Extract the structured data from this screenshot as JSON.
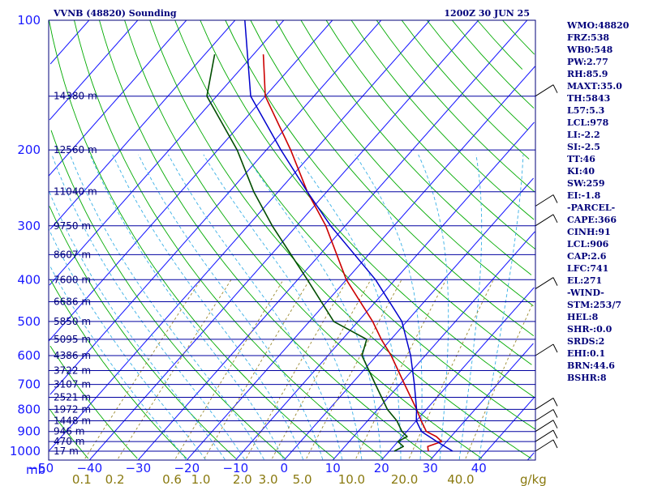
{
  "header": {
    "station": "VVNB (48820) Sounding",
    "time": "1200Z 30 JUN 25"
  },
  "indices": [
    "WMO:48820",
    "FRZ:538",
    "WB0:548",
    "PW:2.77",
    "RH:85.9",
    "MAXT:35.0",
    "TH:5843",
    "L57:5.3",
    "LCL:978",
    "LI:-2.2",
    "SI:-2.5",
    "TT:46",
    "KI:40",
    "SW:259",
    "EI:-1.8",
    "-PARCEL-",
    "CAPE:366",
    "CINH:91",
    "LCL:906",
    "CAP:2.6",
    "LFC:741",
    "EL:271",
    "-WIND-",
    "STM:253/7",
    "HEL:8",
    "SHR-:0.0",
    "SRDS:2",
    "EHI:0.1",
    "BRN:44.6",
    "BSHR:8"
  ],
  "colors": {
    "frame": "#00007a",
    "isobar": "#1a1aff",
    "isotherm": "#1a1aff",
    "dry_adiabat": "#00aa00",
    "moist_adiabat": "#3ab0e6",
    "mixing_ratio": "#9a8a30",
    "temp": "#cc0000",
    "dewpoint": "#004d00",
    "parcel": "#0000cc",
    "wind": "#000000"
  },
  "chart_data": {
    "type": "line",
    "title": "VVNB (48820) Sounding",
    "plot": "skew-T log-p",
    "x_label": "mb",
    "x_unit_label": "g/kg",
    "ylim": [
      1000,
      100
    ],
    "xlim": [
      -50,
      50
    ],
    "pressure_ticks": [
      100,
      200,
      300,
      400,
      500,
      600,
      700,
      800,
      900,
      1000
    ],
    "temperature_ticks": [
      "−50",
      "−40",
      "−30",
      "−20",
      "−10",
      "0",
      "10",
      "20",
      "30",
      "40"
    ],
    "temperature_tick_values": [
      -50,
      -40,
      -30,
      -20,
      -10,
      0,
      10,
      20,
      30,
      40
    ],
    "mixing_ratio_labels": [
      "0.1",
      "0.2",
      "0.6",
      "1.0",
      "2.0",
      "3.0",
      "5.0",
      "10.0",
      "20.0",
      "40.0"
    ],
    "mixing_ratio_values": [
      0.1,
      0.2,
      0.6,
      1.0,
      2.0,
      3.0,
      5.0,
      10.0,
      20.0,
      40.0
    ],
    "height_labels": [
      {
        "p": 150,
        "text": "14380 m"
      },
      {
        "p": 200,
        "text": "12560 m"
      },
      {
        "p": 250,
        "text": "11040 m"
      },
      {
        "p": 300,
        "text": "9750 m"
      },
      {
        "p": 350,
        "text": "8607 m"
      },
      {
        "p": 400,
        "text": "7600 m"
      },
      {
        "p": 450,
        "text": "6686 m"
      },
      {
        "p": 500,
        "text": "5850 m"
      },
      {
        "p": 550,
        "text": "5095 m"
      },
      {
        "p": 600,
        "text": "4386 m"
      },
      {
        "p": 650,
        "text": "3722 m"
      },
      {
        "p": 700,
        "text": "3107 m"
      },
      {
        "p": 750,
        "text": "2521 m"
      },
      {
        "p": 800,
        "text": "1972 m"
      },
      {
        "p": 850,
        "text": "1448 m"
      },
      {
        "p": 900,
        "text": "946 m"
      },
      {
        "p": 950,
        "text": "470 m"
      },
      {
        "p": 1000,
        "text": "17 m"
      }
    ],
    "series": [
      {
        "key": "temp",
        "values": [
          [
            1000,
            28
          ],
          [
            975,
            27
          ],
          [
            950,
            29
          ],
          [
            925,
            27
          ],
          [
            900,
            24
          ],
          [
            850,
            21
          ],
          [
            800,
            18
          ],
          [
            700,
            11
          ],
          [
            600,
            3
          ],
          [
            550,
            -2
          ],
          [
            500,
            -7
          ],
          [
            400,
            -20
          ],
          [
            300,
            -34
          ],
          [
            250,
            -44
          ],
          [
            200,
            -55
          ],
          [
            150,
            -70
          ],
          [
            120,
            -78
          ]
        ]
      },
      {
        "key": "dewpoint",
        "values": [
          [
            1000,
            21
          ],
          [
            975,
            22
          ],
          [
            950,
            20
          ],
          [
            925,
            21
          ],
          [
            900,
            19
          ],
          [
            850,
            16
          ],
          [
            800,
            12
          ],
          [
            700,
            5
          ],
          [
            600,
            -3
          ],
          [
            550,
            -5
          ],
          [
            500,
            -15
          ],
          [
            400,
            -28
          ],
          [
            300,
            -45
          ],
          [
            250,
            -55
          ],
          [
            200,
            -66
          ],
          [
            150,
            -82
          ],
          [
            120,
            -88
          ]
        ]
      },
      {
        "key": "parcel",
        "values": [
          [
            1000,
            33
          ],
          [
            950,
            28
          ],
          [
            900,
            23
          ],
          [
            850,
            20
          ],
          [
            800,
            18
          ],
          [
            700,
            13
          ],
          [
            600,
            7
          ],
          [
            500,
            -1
          ],
          [
            400,
            -14
          ],
          [
            300,
            -33
          ],
          [
            250,
            -44
          ],
          [
            200,
            -57
          ],
          [
            150,
            -73
          ],
          [
            100,
            -88
          ]
        ]
      }
    ],
    "wind_pressures": [
      150,
      270,
      300,
      420,
      600,
      800,
      850,
      900,
      950,
      1000
    ]
  }
}
